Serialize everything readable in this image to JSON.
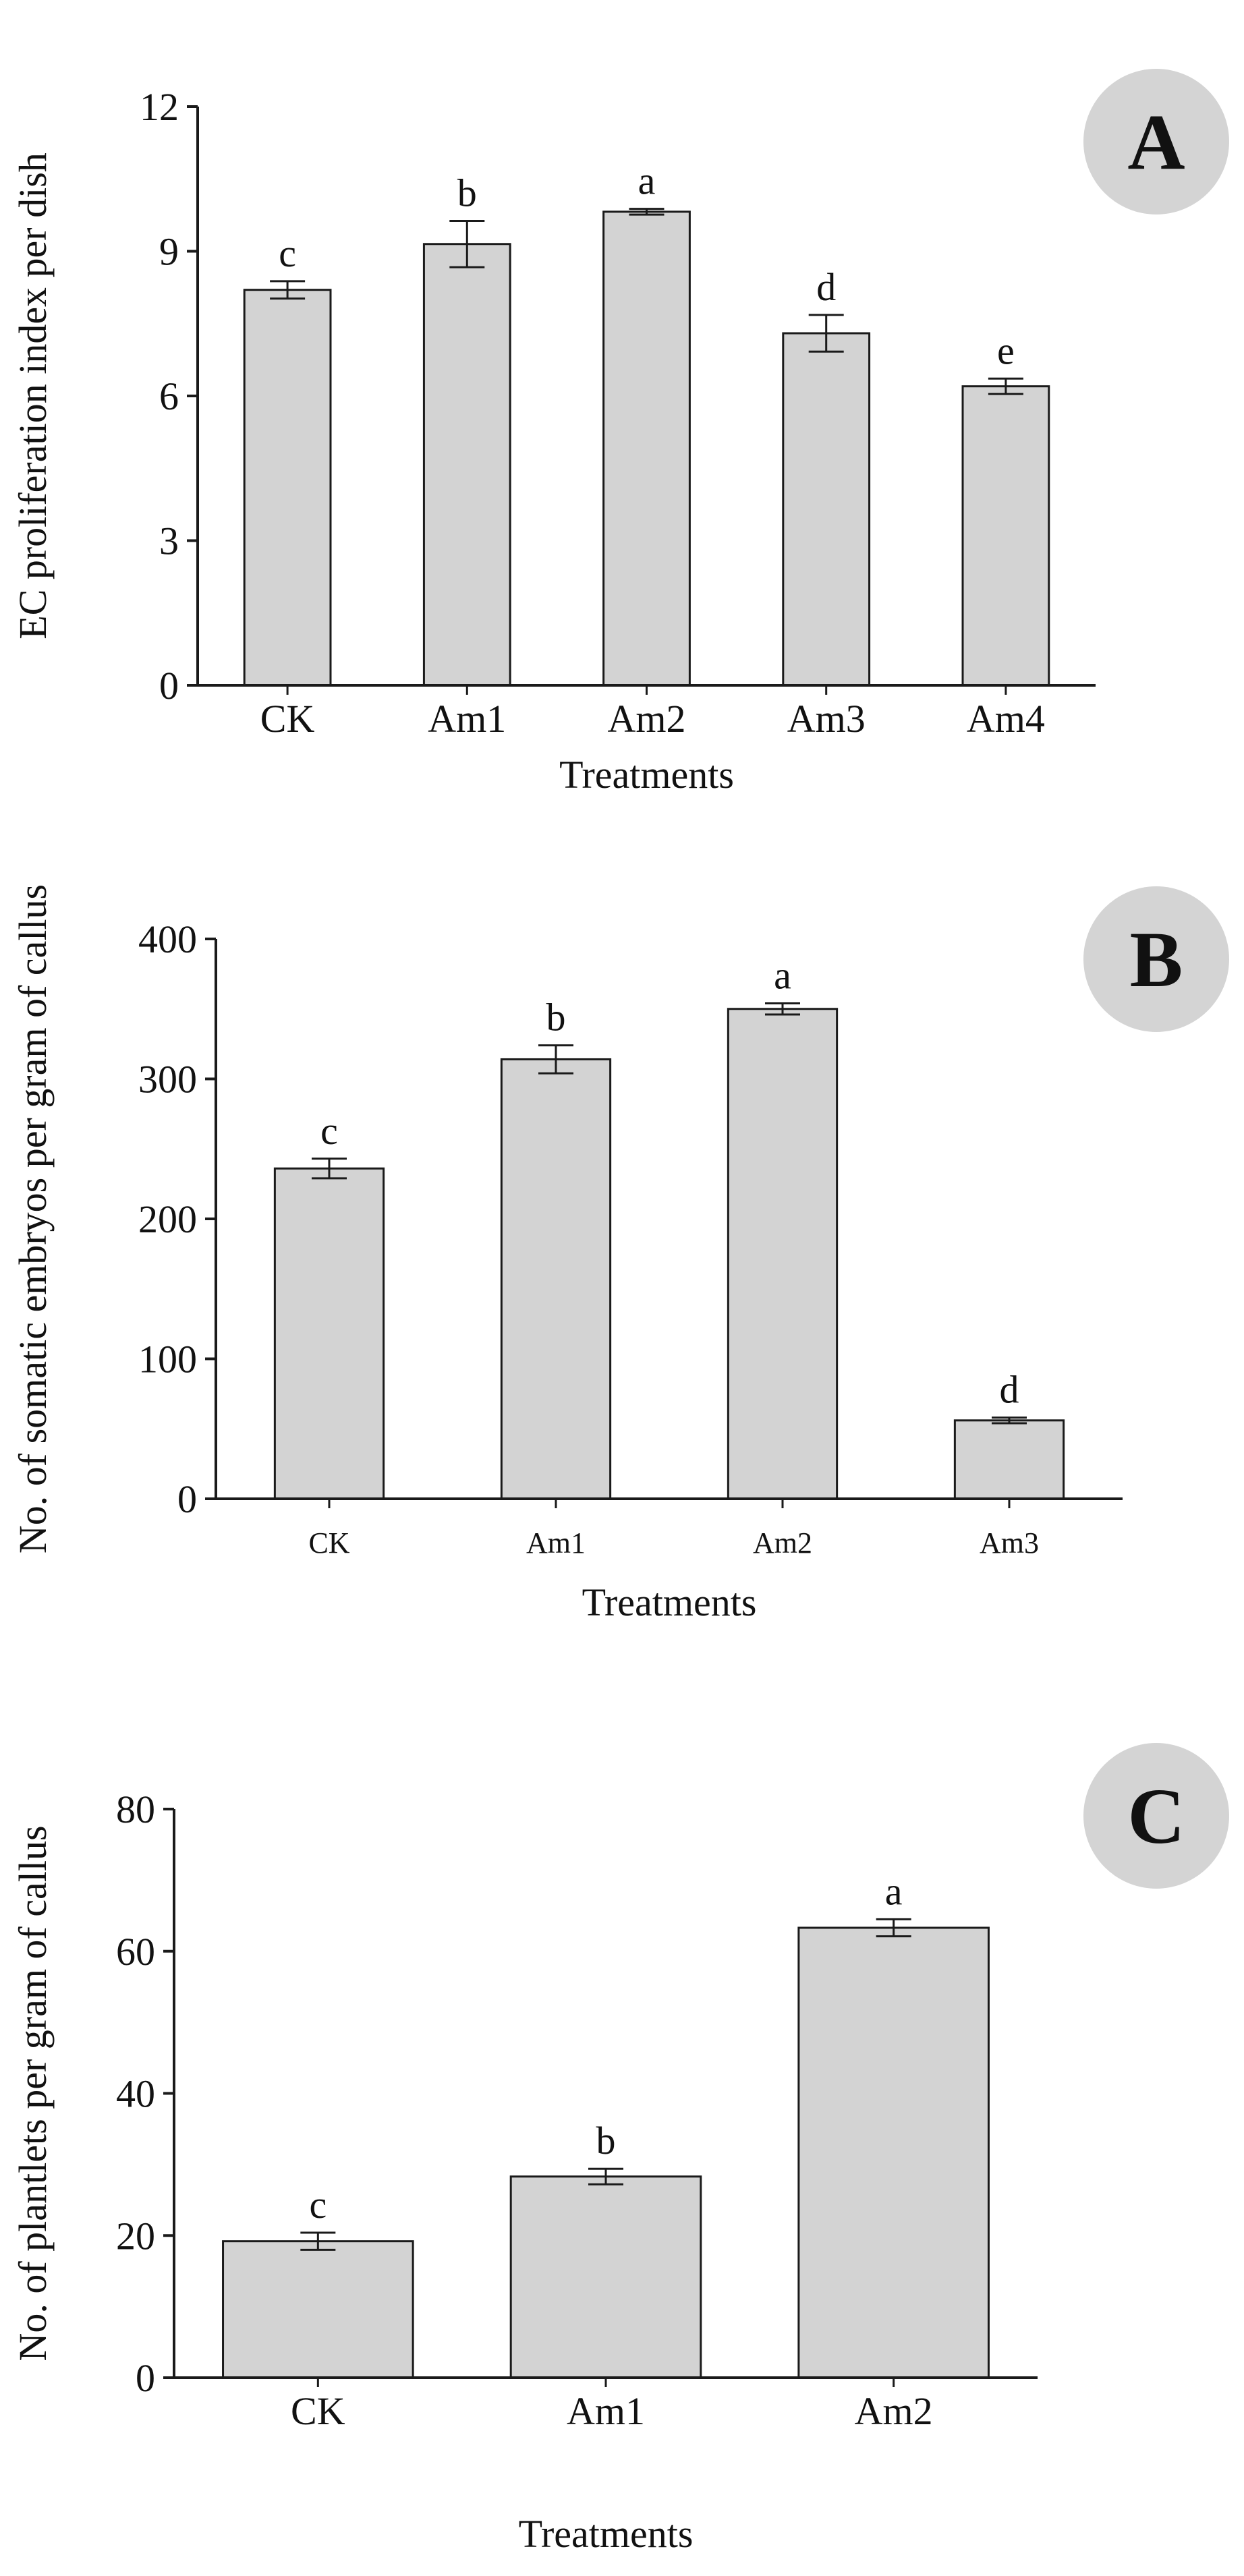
{
  "figure": {
    "bar_fill": "#d3d3d3",
    "bar_stroke": "#1a1a1a",
    "badge_fill": "#d4d4d4",
    "text_color": "#111111"
  },
  "chart_data": [
    {
      "panel": "A",
      "type": "bar",
      "categories": [
        "CK",
        "Am1",
        "Am2",
        "Am3",
        "Am4"
      ],
      "values": [
        8.2,
        9.15,
        9.82,
        7.3,
        6.2
      ],
      "errors": [
        0.18,
        0.48,
        0.06,
        0.38,
        0.16
      ],
      "significance": [
        "c",
        "b",
        "a",
        "d",
        "e"
      ],
      "xlabel": "Treatments",
      "ylabel": "EC proliferation index per dish",
      "ylim": [
        0,
        12
      ],
      "yticks": [
        "0",
        "3",
        "6",
        "9",
        "12"
      ]
    },
    {
      "panel": "B",
      "type": "bar",
      "categories": [
        "CK",
        "Am1",
        "Am2",
        "Am3"
      ],
      "values": [
        236,
        314,
        350,
        56
      ],
      "errors": [
        7,
        10,
        4,
        2
      ],
      "significance": [
        "c",
        "b",
        "a",
        "d"
      ],
      "xlabel": "Treatments",
      "ylabel": "No. of somatic embryos per  gram of callus",
      "ylim": [
        0,
        400
      ],
      "yticks": [
        "0",
        "100",
        "200",
        "300",
        "400"
      ]
    },
    {
      "panel": "C",
      "type": "bar",
      "categories": [
        "CK",
        "Am1",
        "Am2"
      ],
      "values": [
        19.2,
        28.3,
        63.3
      ],
      "errors": [
        1.2,
        1.1,
        1.2
      ],
      "significance": [
        "c",
        "b",
        "a"
      ],
      "xlabel": "Treatments",
      "ylabel": "No. of plantlets  per  gram of callus",
      "ylim": [
        0,
        80
      ],
      "yticks": [
        "0",
        "20",
        "40",
        "60",
        "80"
      ]
    }
  ]
}
